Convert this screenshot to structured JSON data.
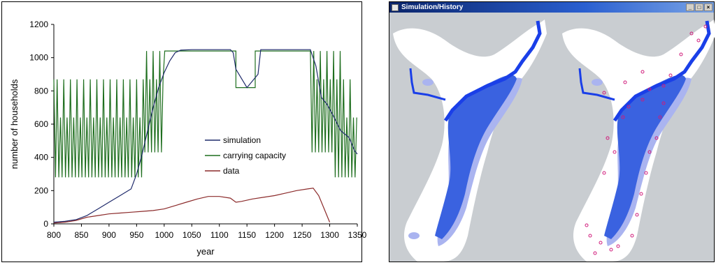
{
  "chart_data": {
    "type": "line",
    "title": "",
    "xlabel": "year",
    "ylabel": "number of households",
    "xlim": [
      800,
      1350
    ],
    "ylim": [
      0,
      1200
    ],
    "xticks": [
      800,
      850,
      900,
      950,
      1000,
      1050,
      1100,
      1150,
      1200,
      1250,
      1300,
      1350
    ],
    "yticks": [
      0,
      200,
      400,
      600,
      800,
      1000,
      1200
    ],
    "grid": false,
    "legend_position": "center",
    "series": [
      {
        "name": "simulation",
        "color": "#1f2a6b",
        "x": [
          800,
          820,
          840,
          860,
          880,
          900,
          920,
          940,
          950,
          960,
          970,
          980,
          990,
          1000,
          1010,
          1020,
          1030,
          1050,
          1080,
          1100,
          1120,
          1125,
          1130,
          1150,
          1170,
          1175,
          1200,
          1230,
          1265,
          1275,
          1285,
          1295,
          1305,
          1320,
          1335,
          1345,
          1350
        ],
        "y": [
          10,
          15,
          25,
          50,
          90,
          130,
          170,
          210,
          300,
          420,
          560,
          700,
          820,
          910,
          980,
          1030,
          1045,
          1048,
          1048,
          1048,
          1048,
          1030,
          930,
          820,
          900,
          1048,
          1048,
          1048,
          1048,
          950,
          760,
          720,
          660,
          560,
          520,
          440,
          420
        ]
      },
      {
        "name": "carrying capacity",
        "color": "#1f6f1f",
        "x": [
          800,
          803,
          806,
          809,
          812,
          815,
          818,
          821,
          824,
          827,
          830,
          833,
          836,
          839,
          842,
          845,
          848,
          851,
          854,
          857,
          860,
          863,
          866,
          869,
          872,
          875,
          878,
          881,
          884,
          887,
          890,
          893,
          896,
          899,
          902,
          905,
          908,
          911,
          914,
          917,
          920,
          923,
          926,
          929,
          932,
          935,
          938,
          941,
          944,
          947,
          950,
          953,
          956,
          959,
          962,
          965,
          968,
          971,
          974,
          977,
          980,
          983,
          986,
          989,
          992,
          995,
          998,
          1001,
          1030,
          1030,
          1130,
          1130,
          1165,
          1165,
          1265,
          1268,
          1271,
          1274,
          1277,
          1280,
          1283,
          1286,
          1289,
          1292,
          1295,
          1298,
          1301,
          1304,
          1307,
          1310,
          1313,
          1316,
          1319,
          1322,
          1325,
          1328,
          1331,
          1334,
          1337,
          1340,
          1343,
          1346,
          1349
        ],
        "y": [
          870,
          280,
          870,
          280,
          640,
          280,
          870,
          280,
          640,
          280,
          870,
          280,
          640,
          280,
          870,
          280,
          640,
          280,
          870,
          280,
          640,
          280,
          870,
          280,
          640,
          280,
          870,
          280,
          640,
          280,
          870,
          280,
          640,
          280,
          870,
          280,
          640,
          280,
          870,
          280,
          640,
          280,
          870,
          280,
          640,
          280,
          870,
          280,
          640,
          280,
          870,
          280,
          640,
          280,
          870,
          430,
          1040,
          430,
          870,
          430,
          1040,
          430,
          870,
          430,
          1040,
          430,
          870,
          1040,
          1040,
          1040,
          1040,
          820,
          820,
          1040,
          1040,
          430,
          1040,
          430,
          870,
          430,
          1040,
          430,
          870,
          430,
          1040,
          430,
          870,
          430,
          1040,
          280,
          870,
          280,
          1040,
          280,
          870,
          280,
          640,
          280,
          870,
          280,
          640,
          280,
          640
        ]
      },
      {
        "name": "data",
        "color": "#8b2a2a",
        "x": [
          800,
          820,
          840,
          860,
          880,
          900,
          920,
          940,
          960,
          980,
          1000,
          1010,
          1020,
          1040,
          1060,
          1080,
          1100,
          1120,
          1130,
          1140,
          1160,
          1180,
          1200,
          1220,
          1240,
          1260,
          1270,
          1280,
          1290,
          1300
        ],
        "y": [
          5,
          10,
          20,
          40,
          50,
          60,
          65,
          70,
          75,
          80,
          90,
          100,
          110,
          130,
          150,
          165,
          165,
          155,
          130,
          135,
          150,
          160,
          170,
          185,
          200,
          210,
          215,
          170,
          90,
          10
        ]
      }
    ]
  },
  "sim_window": {
    "title": "Simulation/History",
    "buttons": [
      "_",
      "□",
      "×"
    ]
  },
  "colors": {
    "background": "#c9cdd1",
    "land": "#ffffff",
    "river": "#1a3fe8",
    "floodplain": "#3a62e0",
    "light_fields": "#aab4f0",
    "marker": "#d01a7a"
  }
}
